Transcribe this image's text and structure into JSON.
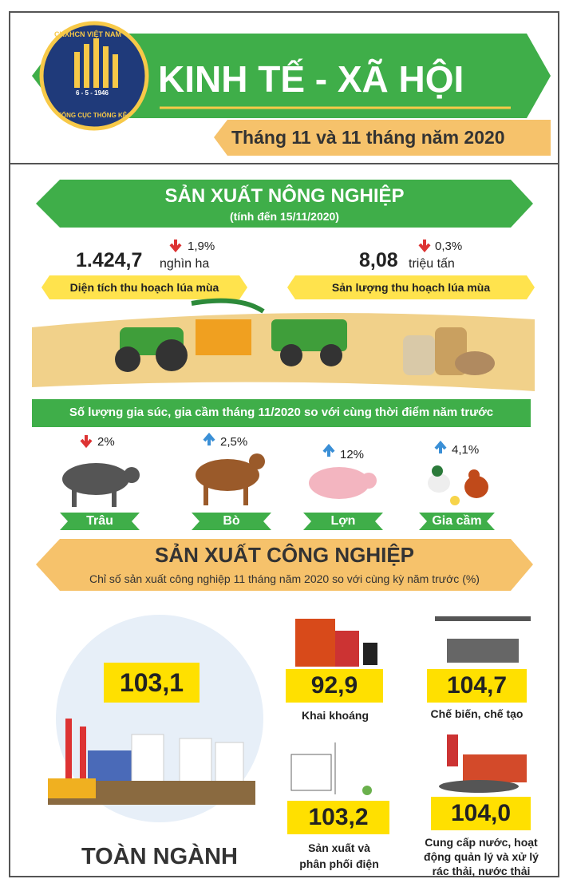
{
  "header": {
    "logo_top": "CHXHCN VIỆT NAM",
    "logo_date": "6 - 5 - 1946",
    "logo_bottom": "TỔNG CỤC THỐNG KÊ",
    "title": "KINH TẾ - XÃ HỘI",
    "subtitle": "Tháng 11 và 11 tháng năm 2020"
  },
  "agriculture": {
    "title": "SẢN XUẤT NÔNG NGHIỆP",
    "note": "(tính đến 15/11/2020)",
    "stats": [
      {
        "value": "1.424,7",
        "unit": "nghìn ha",
        "change": "1,9%",
        "label": "Diện tích thu hoạch lúa mùa"
      },
      {
        "value": "8,08",
        "unit": "triệu tấn",
        "change": "0,3%",
        "label": "Sản lượng thu hoạch lúa mùa"
      }
    ],
    "livestock_title": "Số lượng gia súc, gia cầm tháng 11/2020 so với cùng thời điểm năm trước",
    "livestock": [
      {
        "name": "Trâu",
        "change": "2%"
      },
      {
        "name": "Bò",
        "change": "2,5%"
      },
      {
        "name": "Lợn",
        "change": "12%"
      },
      {
        "name": "Gia cầm",
        "change": "4,1%"
      }
    ]
  },
  "industry": {
    "title": "SẢN XUẤT CÔNG NGHIỆP",
    "subtitle": "Chỉ số sản xuất công nghiệp 11 tháng năm 2020 so với cùng kỳ năm trước (%)",
    "items": [
      {
        "value": "103,1",
        "label": "TOÀN NGÀNH"
      },
      {
        "value": "92,9",
        "label": "Khai khoáng"
      },
      {
        "value": "104,7",
        "label": "Chế biến, chế tạo"
      },
      {
        "value": "103,2",
        "label": "Sản xuất và phân phối điện"
      },
      {
        "value": "104,0",
        "label": "Cung cấp nước, hoạt động quản lý và xử lý rác thải, nước thải"
      }
    ]
  }
}
